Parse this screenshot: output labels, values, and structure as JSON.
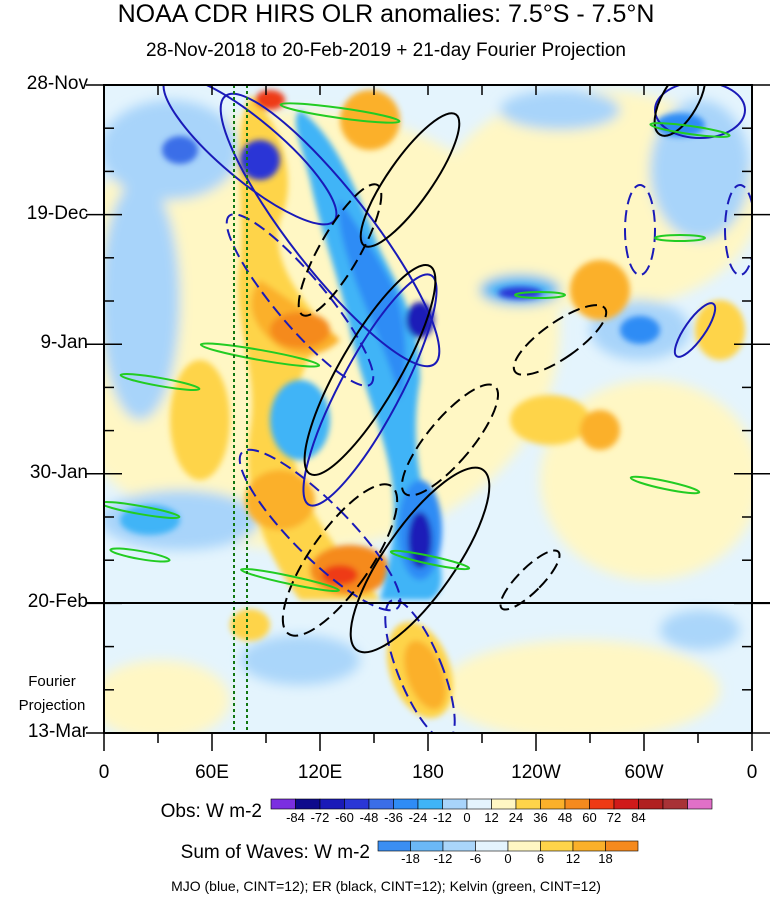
{
  "title": "NOAA CDR HIRS OLR anomalies: 7.5°S - 7.5°N",
  "subtitle": "28-Nov-2018 to 20-Feb-2019 + 21-day Fourier Projection",
  "projection_label": "Fourier Projection",
  "footnote": "MJO (blue, CINT=12); ER (black, CINT=12); Kelvin (green, CINT=12)",
  "colorbar_obs": {
    "title": "Obs: W m-2",
    "ticks": [
      "-84",
      "-72",
      "-60",
      "-48",
      "-36",
      "-24",
      "-12",
      "0",
      "12",
      "24",
      "36",
      "48",
      "60",
      "72",
      "84"
    ],
    "colors": [
      "#7b2fe0",
      "#0e0a8c",
      "#1a1ab8",
      "#2a36d6",
      "#3b6ee8",
      "#2f8cf5",
      "#3fb4f7",
      "#a8d4fa",
      "#e4f4fd",
      "#fff7c4",
      "#fed44a",
      "#fbb02a",
      "#f58a1e",
      "#ee3a14",
      "#d01a1a",
      "#b02020",
      "#a83236",
      "#e070c8"
    ]
  },
  "colorbar_waves": {
    "title": "Sum of Waves: W m-2",
    "ticks": [
      "-18",
      "-12",
      "-6",
      "0",
      "6",
      "12",
      "18"
    ],
    "colors": [
      "#3b8ef2",
      "#6bb8f6",
      "#aad6fa",
      "#e4f4fd",
      "#fff7c4",
      "#fed44a",
      "#fbb02a",
      "#f58a1e"
    ]
  },
  "chart_data": {
    "type": "heatmap",
    "xlabel": "",
    "ylabel": "",
    "x_axis": {
      "ticks": [
        "0",
        "60E",
        "120E",
        "180",
        "120W",
        "60W",
        "0"
      ],
      "values": [
        0,
        60,
        120,
        180,
        240,
        300,
        360
      ],
      "range": [
        0,
        360
      ]
    },
    "y_axis": {
      "ticks": [
        "28-Nov",
        "19-Dec",
        "9-Jan",
        "30-Jan",
        "20-Feb",
        "13-Mar"
      ],
      "days": [
        0,
        21,
        42,
        63,
        84,
        105
      ],
      "range_days": [
        0,
        105
      ],
      "reversed": true
    },
    "observation_end_day": 84,
    "green_dotted_lines_lon": [
      72,
      79
    ],
    "wave_contours": [
      {
        "wave": "MJO",
        "color": "blue",
        "cint": 12
      },
      {
        "wave": "ER",
        "color": "black",
        "cint": 12
      },
      {
        "wave": "Kelvin",
        "color": "green",
        "cint": 12
      }
    ],
    "features": [
      {
        "desc": "enhanced convection band",
        "lon_start": 100,
        "lon_end": 180,
        "day_start": 2,
        "day_end": 82,
        "value": -60
      },
      {
        "desc": "suppressed convection",
        "lon_start": 65,
        "lon_end": 135,
        "day_start": 10,
        "day_end": 84,
        "value": 36
      },
      {
        "desc": "projected positive anomaly",
        "lon_start": 165,
        "lon_end": 190,
        "day_start": 85,
        "day_end": 103,
        "value": 18
      },
      {
        "desc": "suppressed near dateline east",
        "lon_start": 270,
        "lon_end": 300,
        "day_start": 25,
        "day_end": 40,
        "value": 24
      }
    ]
  }
}
